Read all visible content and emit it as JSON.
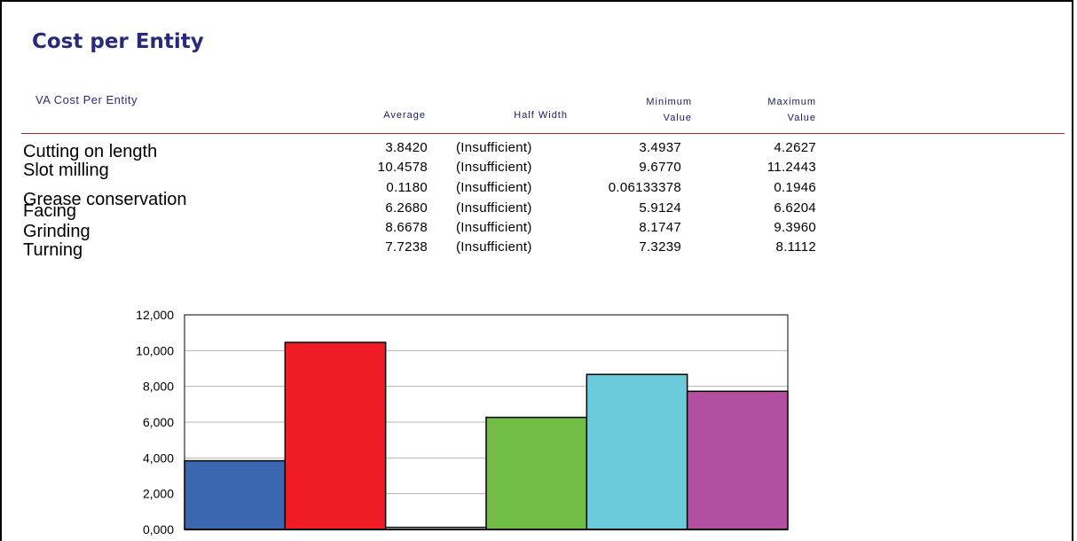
{
  "report": {
    "title": "Cost per Entity",
    "section": "VA Cost Per Entity",
    "headers": {
      "average": "Average",
      "half_width": "Half Width",
      "minimum_1": "Minimum",
      "minimum_2": "Value",
      "maximum_1": "Maximum",
      "maximum_2": "Value"
    },
    "rows": [
      {
        "name": "Cutting on length",
        "average": "3.8420",
        "half_width": "(Insufficient)",
        "minimum": "3.4937",
        "maximum": "4.2627"
      },
      {
        "name": "Slot milling",
        "average": "10.4578",
        "half_width": "(Insufficient)",
        "minimum": "9.6770",
        "maximum": "11.2443"
      },
      {
        "name": "Grease conservation",
        "average": "0.1180",
        "half_width": "(Insufficient)",
        "minimum": "0.06133378",
        "maximum": "0.1946"
      },
      {
        "name": "Facing",
        "average": "6.2680",
        "half_width": "(Insufficient)",
        "minimum": "5.9124",
        "maximum": "6.6204"
      },
      {
        "name": "Grinding",
        "average": "8.6678",
        "half_width": "(Insufficient)",
        "minimum": "8.1747",
        "maximum": "9.3960"
      },
      {
        "name": "Turning",
        "average": "7.7238",
        "half_width": "(Insufficient)",
        "minimum": "7.3239",
        "maximum": "8.1112"
      }
    ]
  },
  "chart_data": {
    "type": "bar",
    "categories": [
      "Cutting on length",
      "Slot milling",
      "Grease conservation",
      "Facing",
      "Grinding",
      "Turning"
    ],
    "values": [
      3.842,
      10.4578,
      0.118,
      6.268,
      8.6678,
      7.7238
    ],
    "colors": [
      "#3a67b0",
      "#ee1c24",
      "#ffffff",
      "#72bd45",
      "#6ccbdb",
      "#b34fa0"
    ],
    "yticks": [
      "0,000",
      "2,000",
      "4,000",
      "6,000",
      "8,000",
      "10,000",
      "12,000"
    ],
    "ylim": [
      0,
      12
    ],
    "grid": true,
    "title": "",
    "xlabel": "",
    "ylabel": ""
  }
}
